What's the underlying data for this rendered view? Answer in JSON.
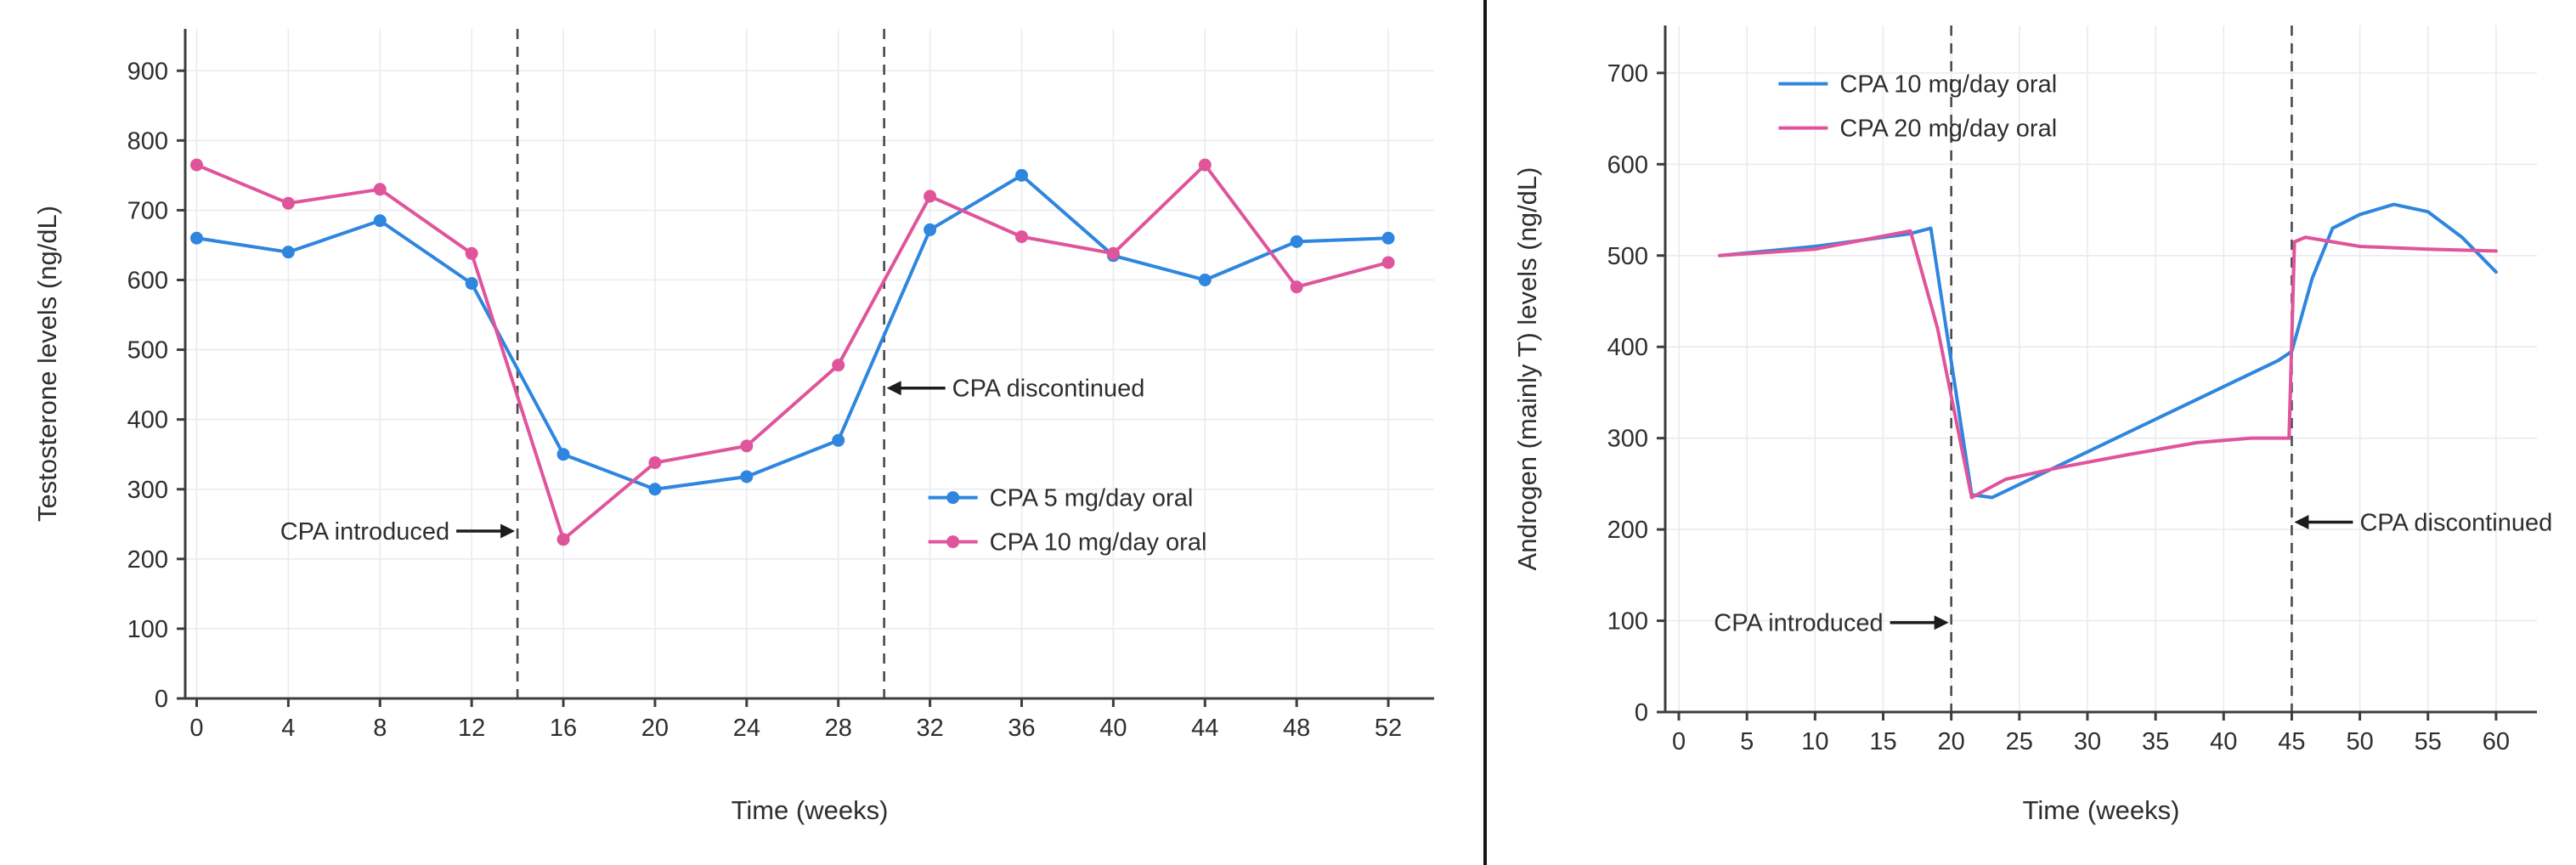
{
  "theme": {
    "background": "#ffffff",
    "divider_color": "#141414",
    "grid_color": "#e9ebf1",
    "axis_color": "#3d3d3d",
    "text_color": "#2e2e2e",
    "vline_color": "#4a4a4a",
    "annotation_color": "#1c1c1c",
    "blue": "#2e86de",
    "pink": "#e0549b"
  },
  "chart_data": [
    {
      "type": "line",
      "title": "",
      "xlabel": "Time (weeks)",
      "ylabel": "Testosterone levels (ng/dL)",
      "xlim": [
        -0.5,
        54
      ],
      "ylim": [
        0,
        960
      ],
      "xticks": [
        0,
        4,
        8,
        12,
        16,
        20,
        24,
        28,
        32,
        36,
        40,
        44,
        48,
        52
      ],
      "yticks": [
        0,
        100,
        200,
        300,
        400,
        500,
        600,
        700,
        800,
        900
      ],
      "grid": true,
      "marker": "circle",
      "legend_position": "inside-mid-right",
      "legend_frac": [
        0.595,
        0.7
      ],
      "vlines": [
        14,
        30
      ],
      "series": [
        {
          "name": "CPA 5 mg/day oral",
          "color": "#2e86de",
          "x": [
            0,
            4,
            8,
            12,
            16,
            20,
            24,
            28,
            32,
            36,
            40,
            44,
            48,
            52
          ],
          "y": [
            660,
            640,
            685,
            595,
            350,
            300,
            318,
            370,
            672,
            750,
            635,
            600,
            655,
            660
          ]
        },
        {
          "name": "CPA 10 mg/day oral",
          "color": "#e0549b",
          "x": [
            0,
            4,
            8,
            12,
            16,
            20,
            24,
            28,
            32,
            36,
            40,
            44,
            48,
            52
          ],
          "y": [
            765,
            710,
            730,
            638,
            228,
            338,
            362,
            478,
            720,
            662,
            638,
            765,
            590,
            625
          ]
        }
      ],
      "annotations": [
        {
          "text": "CPA introduced",
          "x": 14,
          "y": 240,
          "arrow": "right"
        },
        {
          "text": "CPA discontinued",
          "x": 30,
          "y": 445,
          "arrow": "left"
        }
      ]
    },
    {
      "type": "line",
      "title": "",
      "xlabel": "Time (weeks)",
      "ylabel": "Androgen (mainly T) levels (ng/dL)",
      "xlim": [
        -1,
        63
      ],
      "ylim": [
        0,
        752
      ],
      "xticks": [
        0,
        5,
        10,
        15,
        20,
        25,
        30,
        35,
        40,
        45,
        50,
        55,
        60
      ],
      "yticks": [
        0,
        100,
        200,
        300,
        400,
        500,
        600,
        700
      ],
      "grid": true,
      "marker": "none",
      "legend_position": "inside-top-left",
      "legend_frac": [
        0.13,
        0.085
      ],
      "vlines": [
        20,
        45
      ],
      "series": [
        {
          "name": "CPA 10 mg/day oral",
          "color": "#2e86de",
          "x": [
            3,
            10,
            17,
            18.5,
            21.5,
            23,
            30,
            37,
            44,
            45,
            46.5,
            48,
            50,
            52.5,
            55,
            57.5,
            60
          ],
          "y": [
            500,
            510,
            524,
            530,
            238,
            235,
            285,
            335,
            385,
            395,
            475,
            530,
            545,
            556,
            548,
            520,
            482
          ]
        },
        {
          "name": "CPA 20 mg/day oral",
          "color": "#e0549b",
          "x": [
            3,
            10,
            17,
            19,
            21.5,
            24,
            28,
            33,
            38,
            42,
            44.8,
            45.2,
            46,
            50,
            55,
            60
          ],
          "y": [
            500,
            507,
            527,
            420,
            235,
            255,
            268,
            282,
            295,
            300,
            300,
            515,
            520,
            510,
            507,
            505
          ]
        }
      ],
      "annotations": [
        {
          "text": "CPA introduced",
          "x": 20,
          "y": 98,
          "arrow": "right"
        },
        {
          "text": "CPA discontinued",
          "x": 45,
          "y": 208,
          "arrow": "left"
        }
      ]
    }
  ]
}
